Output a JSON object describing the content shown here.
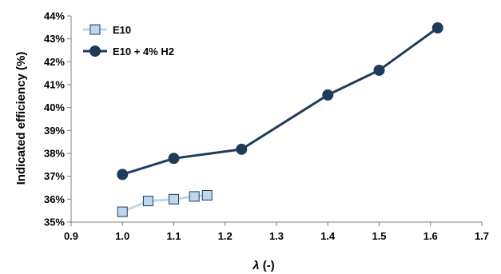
{
  "chart_data": {
    "type": "line",
    "xlabel_symbol": "λ",
    "xlabel_unit": " (-)",
    "ylabel": "Indicated efficiency (%)",
    "xlim": [
      0.9,
      1.7
    ],
    "ylim": [
      35,
      44
    ],
    "x_ticks": [
      "0.9",
      "1.0",
      "1.1",
      "1.2",
      "1.3",
      "1.4",
      "1.5",
      "1.6",
      "1.7"
    ],
    "y_ticks": [
      "35%",
      "36%",
      "37%",
      "38%",
      "39%",
      "40%",
      "41%",
      "42%",
      "43%",
      "44%"
    ],
    "grid": false,
    "legend_position": "top-left",
    "series": [
      {
        "name": "E10",
        "marker": "square",
        "line_color": "#bdd7ee",
        "marker_fill": "#bdd7ee",
        "marker_stroke": "#1f3b5c",
        "x": [
          1.0,
          1.05,
          1.1,
          1.14,
          1.165
        ],
        "y": [
          35.45,
          35.92,
          36.0,
          36.12,
          36.17
        ]
      },
      {
        "name": "E10 + 4% H2",
        "marker": "circle",
        "line_color": "#1f3b5c",
        "marker_fill": "#1f3b5c",
        "marker_stroke": "#1f3b5c",
        "x": [
          1.0,
          1.1,
          1.232,
          1.4,
          1.5,
          1.614
        ],
        "y": [
          37.08,
          37.78,
          38.18,
          40.55,
          41.63,
          43.48
        ]
      }
    ]
  }
}
